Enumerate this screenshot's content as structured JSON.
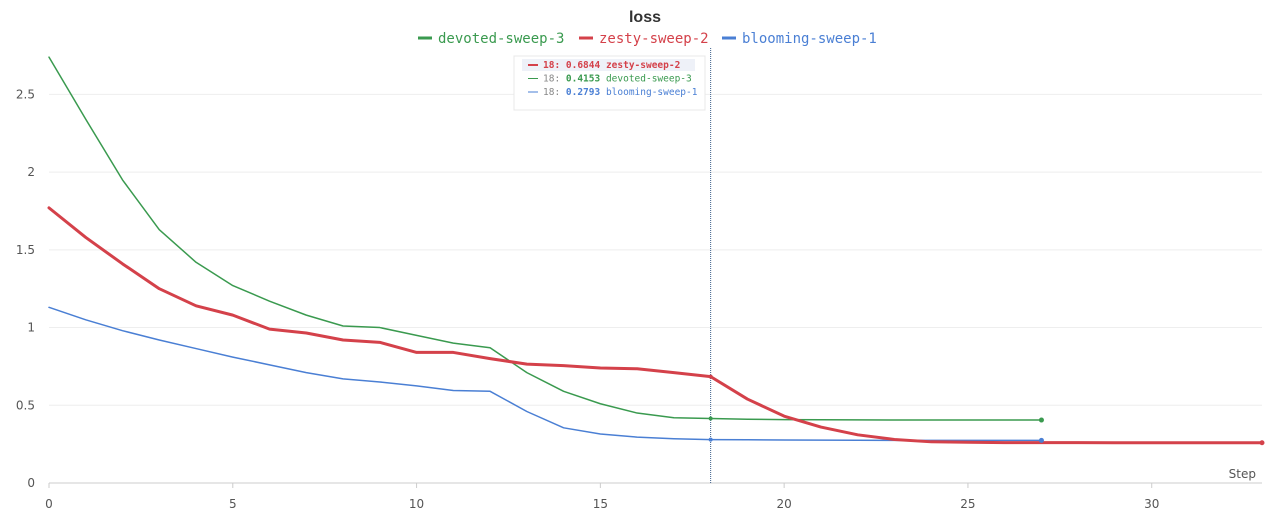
{
  "chart_data": {
    "type": "line",
    "title": "loss",
    "xlabel": "Step",
    "ylabel": "",
    "xlim": [
      0,
      33
    ],
    "ylim": [
      0,
      2.85
    ],
    "xticks": [
      0,
      5,
      10,
      15,
      20,
      25,
      30
    ],
    "yticks": [
      0,
      0.5,
      1,
      1.5,
      2,
      2.5
    ],
    "xtick_labels": [
      "0",
      "5",
      "10",
      "15",
      "20",
      "25",
      "30"
    ],
    "ytick_labels": [
      "0",
      "0.5",
      "1",
      "1.5",
      "2",
      "2.5"
    ],
    "legend_position": "top-center",
    "series": [
      {
        "name": "devoted-sweep-3",
        "color": "#3a9a4f",
        "x": [
          0,
          1,
          2,
          3,
          4,
          5,
          6,
          7,
          8,
          9,
          10,
          11,
          12,
          13,
          14,
          15,
          16,
          17,
          18,
          19,
          20,
          21,
          22,
          23,
          24,
          25,
          26,
          27
        ],
        "values": [
          2.74,
          2.34,
          1.95,
          1.63,
          1.42,
          1.27,
          1.17,
          1.08,
          1.01,
          1.0,
          0.95,
          0.9,
          0.87,
          0.71,
          0.59,
          0.51,
          0.45,
          0.42,
          0.4153,
          0.41,
          0.408,
          0.407,
          0.406,
          0.405,
          0.405,
          0.405,
          0.405,
          0.405
        ]
      },
      {
        "name": "zesty-sweep-2",
        "color": "#d4414a",
        "x": [
          0,
          1,
          2,
          3,
          4,
          5,
          6,
          7,
          8,
          9,
          10,
          11,
          12,
          13,
          14,
          15,
          16,
          17,
          18,
          19,
          20,
          21,
          22,
          23,
          24,
          25,
          26,
          27,
          28,
          29,
          30,
          31,
          32,
          33
        ],
        "values": [
          1.77,
          1.58,
          1.41,
          1.25,
          1.14,
          1.08,
          0.99,
          0.965,
          0.92,
          0.905,
          0.84,
          0.84,
          0.8,
          0.765,
          0.755,
          0.74,
          0.735,
          0.71,
          0.6844,
          0.54,
          0.43,
          0.36,
          0.31,
          0.28,
          0.265,
          0.262,
          0.26,
          0.26,
          0.26,
          0.259,
          0.259,
          0.259,
          0.259,
          0.259
        ]
      },
      {
        "name": "blooming-sweep-1",
        "color": "#4a7fd4",
        "x": [
          0,
          1,
          2,
          3,
          4,
          5,
          6,
          7,
          8,
          9,
          10,
          11,
          12,
          13,
          14,
          15,
          16,
          17,
          18,
          19,
          20,
          21,
          22,
          23,
          24,
          25,
          26,
          27
        ],
        "values": [
          1.13,
          1.05,
          0.98,
          0.92,
          0.865,
          0.81,
          0.76,
          0.71,
          0.67,
          0.65,
          0.625,
          0.595,
          0.59,
          0.46,
          0.355,
          0.315,
          0.295,
          0.285,
          0.2793,
          0.278,
          0.277,
          0.276,
          0.275,
          0.274,
          0.274,
          0.274,
          0.274,
          0.274
        ]
      }
    ],
    "hover": {
      "step": 18,
      "rows": [
        {
          "step_label": "18:",
          "value": "0.6844",
          "name": "zesty-sweep-2",
          "color": "#d4414a",
          "highlight": true
        },
        {
          "step_label": "18:",
          "value": "0.4153",
          "name": "devoted-sweep-3",
          "color": "#3a9a4f",
          "highlight": false
        },
        {
          "step_label": "18:",
          "value": "0.2793",
          "name": "blooming-sweep-1",
          "color": "#4a7fd4",
          "highlight": false
        }
      ]
    }
  }
}
